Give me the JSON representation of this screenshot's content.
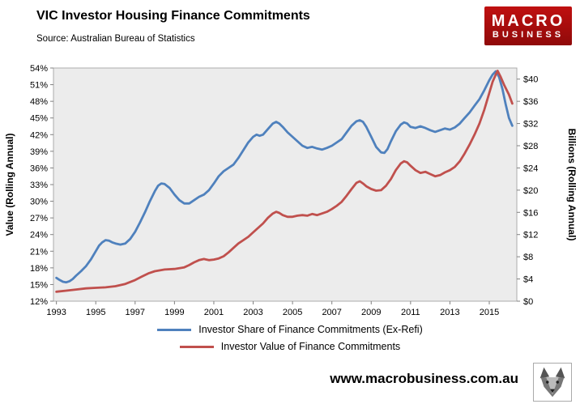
{
  "header": {
    "title": "VIC Investor Housing Finance Commitments",
    "source": "Source: Australian Bureau of Statistics"
  },
  "logo": {
    "line1": "MACRO",
    "line2": "BUSINESS",
    "background": "#c01010"
  },
  "footer": {
    "website": "www.macrobusiness.com.au",
    "logo_icon": "wolf-logo"
  },
  "chart_data": {
    "type": "line",
    "plot_background": "#ECECEC",
    "plot_border": "#ABABAB",
    "x_axis": {
      "min": 1992.85,
      "max": 2016.4,
      "tick_values": [
        1993,
        1995,
        1997,
        1999,
        2001,
        2003,
        2005,
        2007,
        2009,
        2011,
        2013,
        2015
      ],
      "tick_labels": [
        "1993",
        "1995",
        "1997",
        "1999",
        "2001",
        "2003",
        "2005",
        "2007",
        "2009",
        "2011",
        "2013",
        "2015"
      ]
    },
    "left_axis": {
      "label": "Value (Rolling Annual)",
      "min": 12,
      "max": 54,
      "tick_values": [
        12,
        15,
        18,
        21,
        24,
        27,
        30,
        33,
        36,
        39,
        42,
        45,
        48,
        51,
        54
      ],
      "tick_labels": [
        "12%",
        "15%",
        "18%",
        "21%",
        "24%",
        "27%",
        "30%",
        "33%",
        "36%",
        "39%",
        "42%",
        "45%",
        "48%",
        "51%",
        "54%"
      ]
    },
    "right_axis": {
      "label": "Billions (Rolling Annual)",
      "min": 0,
      "max": 42,
      "tick_values": [
        0,
        4,
        8,
        12,
        16,
        20,
        24,
        28,
        32,
        36,
        40
      ],
      "tick_labels": [
        "$0",
        "$4",
        "$8",
        "$12",
        "$16",
        "$20",
        "$24",
        "$28",
        "$32",
        "$36",
        "$40"
      ]
    },
    "series": [
      {
        "name": "Investor Share of Finance Commitments (Ex-Refi)",
        "axis": "left",
        "color": "#4F81BD",
        "points": [
          [
            1993.0,
            16.2
          ],
          [
            1993.17,
            15.8
          ],
          [
            1993.33,
            15.5
          ],
          [
            1993.5,
            15.4
          ],
          [
            1993.67,
            15.6
          ],
          [
            1993.83,
            16.0
          ],
          [
            1994.0,
            16.6
          ],
          [
            1994.25,
            17.4
          ],
          [
            1994.5,
            18.3
          ],
          [
            1994.75,
            19.5
          ],
          [
            1995.0,
            21.0
          ],
          [
            1995.17,
            22.0
          ],
          [
            1995.33,
            22.6
          ],
          [
            1995.5,
            23.0
          ],
          [
            1995.67,
            22.9
          ],
          [
            1995.83,
            22.6
          ],
          [
            1996.0,
            22.4
          ],
          [
            1996.25,
            22.2
          ],
          [
            1996.5,
            22.4
          ],
          [
            1996.75,
            23.2
          ],
          [
            1997.0,
            24.5
          ],
          [
            1997.25,
            26.2
          ],
          [
            1997.5,
            28.0
          ],
          [
            1997.75,
            30.0
          ],
          [
            1998.0,
            31.8
          ],
          [
            1998.17,
            32.8
          ],
          [
            1998.33,
            33.2
          ],
          [
            1998.5,
            33.1
          ],
          [
            1998.75,
            32.4
          ],
          [
            1999.0,
            31.2
          ],
          [
            1999.25,
            30.2
          ],
          [
            1999.5,
            29.6
          ],
          [
            1999.75,
            29.6
          ],
          [
            2000.0,
            30.2
          ],
          [
            2000.25,
            30.8
          ],
          [
            2000.5,
            31.2
          ],
          [
            2000.75,
            32.0
          ],
          [
            2001.0,
            33.2
          ],
          [
            2001.25,
            34.5
          ],
          [
            2001.5,
            35.4
          ],
          [
            2001.75,
            36.0
          ],
          [
            2002.0,
            36.6
          ],
          [
            2002.25,
            37.8
          ],
          [
            2002.5,
            39.2
          ],
          [
            2002.75,
            40.6
          ],
          [
            2003.0,
            41.6
          ],
          [
            2003.17,
            42.0
          ],
          [
            2003.33,
            41.8
          ],
          [
            2003.5,
            42.0
          ],
          [
            2003.75,
            43.0
          ],
          [
            2004.0,
            44.0
          ],
          [
            2004.17,
            44.3
          ],
          [
            2004.33,
            44.0
          ],
          [
            2004.5,
            43.4
          ],
          [
            2004.75,
            42.4
          ],
          [
            2005.0,
            41.6
          ],
          [
            2005.25,
            40.8
          ],
          [
            2005.5,
            40.0
          ],
          [
            2005.75,
            39.6
          ],
          [
            2006.0,
            39.8
          ],
          [
            2006.25,
            39.5
          ],
          [
            2006.5,
            39.3
          ],
          [
            2006.75,
            39.6
          ],
          [
            2007.0,
            40.0
          ],
          [
            2007.25,
            40.6
          ],
          [
            2007.5,
            41.2
          ],
          [
            2007.75,
            42.4
          ],
          [
            2008.0,
            43.6
          ],
          [
            2008.25,
            44.4
          ],
          [
            2008.42,
            44.6
          ],
          [
            2008.58,
            44.3
          ],
          [
            2008.75,
            43.4
          ],
          [
            2009.0,
            41.6
          ],
          [
            2009.25,
            39.8
          ],
          [
            2009.5,
            38.8
          ],
          [
            2009.67,
            38.7
          ],
          [
            2009.83,
            39.4
          ],
          [
            2010.0,
            40.8
          ],
          [
            2010.25,
            42.6
          ],
          [
            2010.5,
            43.8
          ],
          [
            2010.67,
            44.2
          ],
          [
            2010.83,
            44.0
          ],
          [
            2011.0,
            43.4
          ],
          [
            2011.25,
            43.2
          ],
          [
            2011.5,
            43.5
          ],
          [
            2011.75,
            43.2
          ],
          [
            2012.0,
            42.8
          ],
          [
            2012.25,
            42.5
          ],
          [
            2012.5,
            42.8
          ],
          [
            2012.75,
            43.1
          ],
          [
            2013.0,
            42.9
          ],
          [
            2013.25,
            43.3
          ],
          [
            2013.5,
            44.0
          ],
          [
            2013.75,
            45.0
          ],
          [
            2014.0,
            46.0
          ],
          [
            2014.25,
            47.2
          ],
          [
            2014.5,
            48.4
          ],
          [
            2014.75,
            50.0
          ],
          [
            2015.0,
            51.8
          ],
          [
            2015.17,
            52.8
          ],
          [
            2015.33,
            53.4
          ],
          [
            2015.5,
            52.4
          ],
          [
            2015.67,
            50.2
          ],
          [
            2015.83,
            47.5
          ],
          [
            2016.0,
            45.0
          ],
          [
            2016.17,
            43.6
          ]
        ]
      },
      {
        "name": "Investor Value of Finance Commitments",
        "axis": "right",
        "color": "#C0504D",
        "points": [
          [
            1993.0,
            1.7
          ],
          [
            1993.5,
            1.9
          ],
          [
            1994.0,
            2.1
          ],
          [
            1994.5,
            2.3
          ],
          [
            1995.0,
            2.4
          ],
          [
            1995.5,
            2.5
          ],
          [
            1996.0,
            2.7
          ],
          [
            1996.5,
            3.1
          ],
          [
            1997.0,
            3.8
          ],
          [
            1997.33,
            4.4
          ],
          [
            1997.67,
            5.0
          ],
          [
            1998.0,
            5.4
          ],
          [
            1998.5,
            5.7
          ],
          [
            1999.0,
            5.8
          ],
          [
            1999.5,
            6.1
          ],
          [
            1999.75,
            6.5
          ],
          [
            2000.0,
            7.0
          ],
          [
            2000.25,
            7.4
          ],
          [
            2000.5,
            7.6
          ],
          [
            2000.75,
            7.4
          ],
          [
            2001.0,
            7.5
          ],
          [
            2001.25,
            7.7
          ],
          [
            2001.5,
            8.1
          ],
          [
            2001.75,
            8.8
          ],
          [
            2002.0,
            9.6
          ],
          [
            2002.25,
            10.4
          ],
          [
            2002.5,
            11.0
          ],
          [
            2002.75,
            11.6
          ],
          [
            2003.0,
            12.4
          ],
          [
            2003.25,
            13.2
          ],
          [
            2003.5,
            14.0
          ],
          [
            2003.75,
            15.0
          ],
          [
            2004.0,
            15.8
          ],
          [
            2004.17,
            16.1
          ],
          [
            2004.33,
            15.9
          ],
          [
            2004.5,
            15.5
          ],
          [
            2004.75,
            15.2
          ],
          [
            2005.0,
            15.2
          ],
          [
            2005.25,
            15.4
          ],
          [
            2005.5,
            15.5
          ],
          [
            2005.75,
            15.4
          ],
          [
            2006.0,
            15.7
          ],
          [
            2006.25,
            15.5
          ],
          [
            2006.5,
            15.8
          ],
          [
            2006.75,
            16.1
          ],
          [
            2007.0,
            16.6
          ],
          [
            2007.25,
            17.2
          ],
          [
            2007.5,
            17.9
          ],
          [
            2007.75,
            19.0
          ],
          [
            2008.0,
            20.2
          ],
          [
            2008.25,
            21.3
          ],
          [
            2008.42,
            21.6
          ],
          [
            2008.58,
            21.2
          ],
          [
            2008.75,
            20.7
          ],
          [
            2009.0,
            20.2
          ],
          [
            2009.25,
            19.9
          ],
          [
            2009.5,
            20.0
          ],
          [
            2009.75,
            20.8
          ],
          [
            2010.0,
            22.0
          ],
          [
            2010.25,
            23.6
          ],
          [
            2010.5,
            24.8
          ],
          [
            2010.67,
            25.2
          ],
          [
            2010.83,
            25.0
          ],
          [
            2011.0,
            24.4
          ],
          [
            2011.25,
            23.6
          ],
          [
            2011.5,
            23.1
          ],
          [
            2011.75,
            23.3
          ],
          [
            2012.0,
            22.9
          ],
          [
            2012.25,
            22.5
          ],
          [
            2012.5,
            22.7
          ],
          [
            2012.75,
            23.2
          ],
          [
            2013.0,
            23.6
          ],
          [
            2013.25,
            24.2
          ],
          [
            2013.5,
            25.2
          ],
          [
            2013.75,
            26.6
          ],
          [
            2014.0,
            28.2
          ],
          [
            2014.25,
            30.0
          ],
          [
            2014.5,
            32.0
          ],
          [
            2014.75,
            34.5
          ],
          [
            2015.0,
            37.5
          ],
          [
            2015.17,
            39.5
          ],
          [
            2015.33,
            40.8
          ],
          [
            2015.42,
            41.5
          ],
          [
            2015.58,
            40.4
          ],
          [
            2015.75,
            39.0
          ],
          [
            2016.0,
            37.2
          ],
          [
            2016.17,
            35.6
          ]
        ]
      }
    ]
  }
}
